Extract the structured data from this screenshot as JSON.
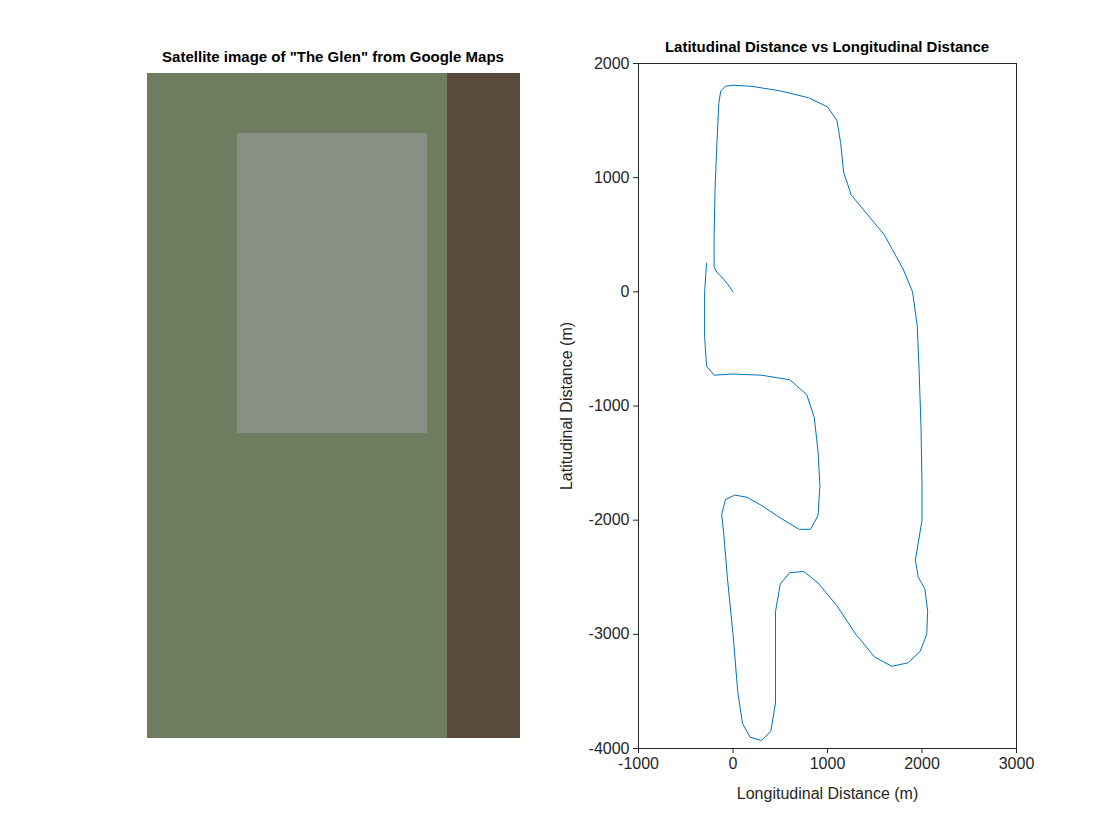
{
  "chart_data": [
    {
      "type": "image",
      "title": "Satellite image of \"The Glen\" from Google Maps"
    },
    {
      "type": "line",
      "title": "Latitudinal Distance vs Longitudinal Distance",
      "x_label": "Longitudinal Distance (m)",
      "y_label": "Latitudinal Distance (m)",
      "color": "#0072bd",
      "xlim": [
        -1000,
        3000
      ],
      "xticks": [
        -1000,
        0,
        1000,
        2000,
        3000
      ],
      "ylim": [
        -4000,
        2000
      ],
      "yticks": [
        -4000,
        -3000,
        -2000,
        -1000,
        0,
        1000,
        2000
      ],
      "grid": false,
      "x": [
        0,
        -50,
        -120,
        -170,
        -200,
        -200,
        -190,
        -170,
        -150,
        -130,
        -80,
        0,
        200,
        500,
        800,
        1000,
        1100,
        1140,
        1170,
        1250,
        1400,
        1600,
        1800,
        1900,
        1950,
        1970,
        1990,
        2000,
        2000,
        1960,
        1930,
        1960,
        2030,
        2060,
        2050,
        1980,
        1850,
        1680,
        1500,
        1300,
        1100,
        900,
        750,
        600,
        500,
        450,
        450,
        450,
        400,
        300,
        180,
        100,
        50,
        0,
        -60,
        -100,
        -120,
        -80,
        20,
        150,
        300,
        500,
        700,
        820,
        900,
        920,
        900,
        860,
        780,
        600,
        300,
        0,
        -200,
        -280,
        -300,
        -300,
        -280
      ],
      "values": [
        0,
        60,
        130,
        170,
        220,
        500,
        900,
        1300,
        1650,
        1760,
        1800,
        1810,
        1800,
        1760,
        1700,
        1620,
        1500,
        1300,
        1050,
        850,
        700,
        500,
        200,
        0,
        -300,
        -700,
        -1200,
        -1700,
        -2000,
        -2200,
        -2350,
        -2500,
        -2600,
        -2800,
        -3000,
        -3150,
        -3250,
        -3280,
        -3200,
        -3000,
        -2750,
        -2550,
        -2450,
        -2460,
        -2560,
        -2800,
        -3200,
        -3600,
        -3850,
        -3930,
        -3900,
        -3780,
        -3500,
        -3000,
        -2500,
        -2100,
        -1950,
        -1820,
        -1780,
        -1800,
        -1870,
        -1980,
        -2080,
        -2080,
        -1960,
        -1700,
        -1400,
        -1100,
        -900,
        -770,
        -730,
        -720,
        -730,
        -650,
        -400,
        0,
        250
      ]
    }
  ]
}
